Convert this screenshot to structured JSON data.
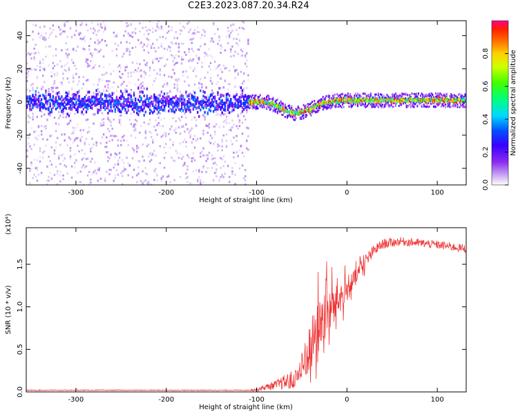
{
  "title": "C2E3.2023.087.20.34.R24",
  "colors": {
    "spectrogram_ramp": [
      "#ffffff",
      "#e0cbf7",
      "#b07be8",
      "#7d2ef2",
      "#4a00ff",
      "#0018ff",
      "#00a6ff",
      "#00ffee",
      "#00ff3a",
      "#9cff00",
      "#ffe100",
      "#ff7a00",
      "#ff1e00",
      "#ff0090"
    ],
    "snr_line": "#ee3333"
  },
  "chart_data": [
    {
      "type": "heatmap",
      "xlabel": "Height of straight line (km)",
      "ylabel": "Frequency (Hz)",
      "xlim": [
        -355,
        132
      ],
      "ylim": [
        -50,
        49
      ],
      "x_ticks": [
        -300,
        -200,
        -100,
        0,
        100
      ],
      "y_ticks": [
        -40,
        -20,
        0,
        20,
        40
      ],
      "grid": false,
      "colorbar": {
        "label": "Normalized spectral amplitude",
        "range": [
          0,
          1
        ],
        "ticks": [
          "0.0",
          "0.2",
          "0.4",
          "0.6",
          "0.8"
        ]
      },
      "regions": [
        {
          "x_range": [
            -355,
            -110
          ],
          "description_value": "broadband noise",
          "core_band_hz": [
            -10,
            8
          ],
          "amplitude": [
            0.1,
            0.45
          ]
        },
        {
          "x_range": [
            -110,
            132
          ],
          "description_value": "narrowband signal",
          "band_width_hz": 6,
          "amplitude": [
            0.4,
            1.0
          ]
        }
      ],
      "signal_center_hz": {
        "x": [
          -110,
          -90,
          -80,
          -70,
          -60,
          -50,
          -40,
          -30,
          -20,
          -10,
          0,
          20,
          40,
          60,
          80,
          100,
          132
        ],
        "y": [
          0,
          0,
          -2,
          -5,
          -7,
          -6,
          -4,
          -1,
          0,
          1,
          1,
          1,
          1,
          1,
          1,
          1,
          1
        ]
      }
    },
    {
      "type": "line",
      "xlabel": "Height of straight line (km)",
      "ylabel": "SNR (10 * v/v)",
      "y_multiplier": "(x10⁴)",
      "xlim": [
        -355,
        132
      ],
      "ylim": [
        0,
        1.93
      ],
      "x_ticks": [
        -300,
        -200,
        -100,
        0,
        100
      ],
      "y_ticks": [
        "0.0",
        "0.5",
        "1.0",
        "1.5"
      ],
      "series": [
        {
          "x": [
            -355,
            -110,
            -100,
            -80,
            -60,
            -50,
            -40,
            -30,
            -20,
            -10,
            0,
            10,
            20,
            30,
            40,
            60,
            80,
            100,
            120,
            132
          ],
          "y": [
            0.02,
            0.02,
            0.03,
            0.08,
            0.14,
            0.25,
            0.55,
            0.8,
            0.95,
            1.08,
            1.2,
            1.35,
            1.52,
            1.66,
            1.74,
            1.77,
            1.75,
            1.73,
            1.7,
            1.68
          ],
          "noise_amplitude": [
            0.005,
            0.005,
            0.02,
            0.05,
            0.12,
            0.25,
            0.45,
            0.45,
            0.4,
            0.25,
            0.2,
            0.15,
            0.1,
            0.07,
            0.06,
            0.05,
            0.05,
            0.05,
            0.05,
            0.05
          ]
        }
      ]
    }
  ],
  "units": {
    "top_x_label": "Height of straight line (km)",
    "bottom_x_label": "Height of straight line (km)"
  }
}
